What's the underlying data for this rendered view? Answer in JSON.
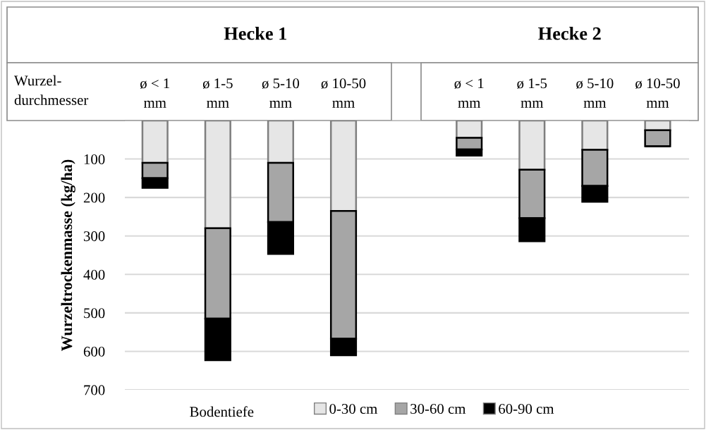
{
  "chart_data": {
    "type": "bar",
    "stacked": true,
    "categories": [
      "ø < 1\nmm",
      "ø 1-5\nmm",
      "ø 5-10\nmm",
      "ø 10-50\nmm",
      null,
      "ø < 1\nmm",
      "ø 1-5\nmm",
      "ø 5-10\nmm",
      "ø 10-50\nmm"
    ],
    "series": [
      {
        "name": "0-30 cm",
        "color": "#e6e6e6",
        "values": [
          110,
          280,
          110,
          235,
          null,
          45,
          128,
          76,
          25
        ]
      },
      {
        "name": "30-60 cm",
        "color": "#a6a6a6",
        "values": [
          40,
          235,
          154,
          332,
          null,
          30,
          126,
          94,
          42
        ]
      },
      {
        "name": "60-90 cm",
        "color": "#000000",
        "values": [
          25,
          108,
          83,
          43,
          null,
          16,
          60,
          41,
          0
        ]
      }
    ],
    "ylabel": "Wurzeltrockenmasse (kg/ha)",
    "legend_title": "Bodentiefe",
    "annotations": [
      "Hecke 1",
      "Hecke 2",
      "Wurzel-\ndurchmesser"
    ],
    "ylim": [
      700,
      0
    ],
    "yticks": [
      {
        "value": 0,
        "label": null
      },
      100,
      200,
      300,
      400,
      500,
      600,
      700
    ],
    "grid": "y",
    "legend": "bottom"
  }
}
